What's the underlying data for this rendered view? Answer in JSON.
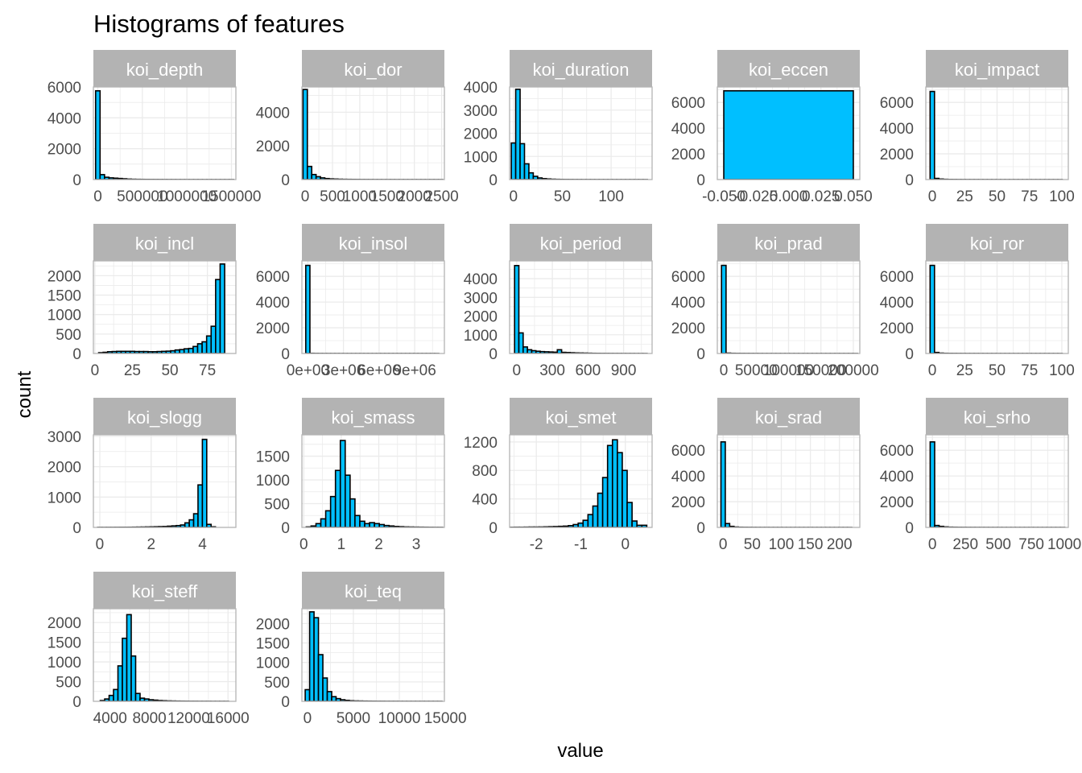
{
  "title": "Histograms of features",
  "colors": {
    "fill": "#00bfff",
    "outline": "#000000",
    "strip": "#b3b3b3",
    "grid": "#ebebeb",
    "panel_border": "#b3b3b3",
    "strip_text": "#ffffff"
  },
  "chart_data": {
    "type": "bar",
    "title": "Histograms of features",
    "xlabel": "value",
    "ylabel": "count",
    "facet_layout": {
      "ncol": 5,
      "nrow": 4,
      "scales": "free"
    },
    "grid": true,
    "panels": [
      {
        "name": "koi_depth",
        "xlim": [
          -50000,
          1550000
        ],
        "ylim": [
          0,
          6000
        ],
        "xticks": [
          0,
          500000,
          1000000,
          1500000
        ],
        "xtick_labels": [
          "0",
          "500000",
          "1000000",
          "1500000"
        ],
        "yticks": [
          0,
          2000,
          4000,
          6000
        ],
        "ytick_labels": [
          "0",
          "2000",
          "4000",
          "6000"
        ],
        "bins": {
          "start": -25000,
          "width": 50000,
          "counts": [
            5750,
            320,
            150,
            110,
            90,
            70,
            50,
            30,
            20,
            15,
            12,
            10,
            8,
            7,
            6,
            5,
            4,
            4,
            3,
            3,
            2,
            2,
            2,
            2,
            1,
            1,
            1,
            1,
            1,
            1,
            1
          ]
        }
      },
      {
        "name": "koi_dor",
        "xlim": [
          -60,
          2550
        ],
        "ylim": [
          0,
          5500
        ],
        "xticks": [
          0,
          500,
          1000,
          1500,
          2000,
          2500
        ],
        "xtick_labels": [
          "0",
          "500",
          "1000",
          "1500",
          "2000",
          "2500"
        ],
        "yticks": [
          0,
          2000,
          4000
        ],
        "ytick_labels": [
          "0",
          "2000",
          "4000"
        ],
        "bins": {
          "start": -40,
          "width": 80,
          "counts": [
            5350,
            780,
            300,
            170,
            100,
            60,
            40,
            30,
            20,
            15,
            12,
            10,
            8,
            6,
            5,
            4,
            3,
            3,
            2,
            2,
            2,
            1,
            1,
            1,
            1,
            1,
            1,
            1,
            1,
            1,
            1,
            1
          ]
        }
      },
      {
        "name": "koi_duration",
        "xlim": [
          -4,
          142
        ],
        "ylim": [
          0,
          4000
        ],
        "xticks": [
          0,
          50,
          100
        ],
        "xtick_labels": [
          "0",
          "50",
          "100"
        ],
        "yticks": [
          0,
          1000,
          2000,
          3000,
          4000
        ],
        "ytick_labels": [
          "0",
          "1000",
          "2000",
          "3000",
          "4000"
        ],
        "bins": {
          "start": -2.25,
          "width": 4.5,
          "counts": [
            1580,
            3900,
            1550,
            680,
            290,
            140,
            70,
            40,
            25,
            15,
            10,
            7,
            5,
            4,
            3,
            3,
            2,
            2,
            2,
            1,
            1,
            1,
            1,
            1,
            1,
            1,
            1,
            1,
            1,
            1,
            1
          ]
        }
      },
      {
        "name": "koi_eccen",
        "xlim": [
          -0.055,
          0.055
        ],
        "ylim": [
          0,
          7200
        ],
        "xticks": [
          -0.05,
          -0.025,
          0,
          0.025,
          0.05
        ],
        "xtick_labels": [
          "-0.050",
          "-0.025",
          "0.000",
          "0.025",
          "0.050"
        ],
        "yticks": [
          0,
          2000,
          4000,
          6000
        ],
        "ytick_labels": [
          "0",
          "2000",
          "4000",
          "6000"
        ],
        "bins": {
          "start": -0.05,
          "width": 0.1,
          "counts": [
            6900
          ]
        }
      },
      {
        "name": "koi_impact",
        "xlim": [
          -5,
          105
        ],
        "ylim": [
          0,
          7200
        ],
        "xticks": [
          0,
          25,
          50,
          75,
          100
        ],
        "xtick_labels": [
          "0",
          "25",
          "50",
          "75",
          "100"
        ],
        "yticks": [
          0,
          2000,
          4000,
          6000
        ],
        "ytick_labels": [
          "0",
          "2000",
          "4000",
          "6000"
        ],
        "bins": {
          "start": -1.7,
          "width": 3.4,
          "counts": [
            6850,
            90,
            40,
            20,
            10,
            8,
            6,
            5,
            4,
            3,
            3,
            2,
            2,
            2,
            2,
            1,
            1,
            1,
            1,
            1,
            1,
            1,
            1,
            1,
            1,
            1,
            1,
            1,
            1,
            1
          ]
        }
      },
      {
        "name": "koi_incl",
        "xlim": [
          -1,
          94
        ],
        "ylim": [
          0,
          2380
        ],
        "xticks": [
          0,
          25,
          50,
          75
        ],
        "xtick_labels": [
          "0",
          "25",
          "50",
          "75"
        ],
        "yticks": [
          0,
          500,
          1000,
          1500,
          2000
        ],
        "ytick_labels": [
          "0",
          "500",
          "1000",
          "1500",
          "2000"
        ],
        "bins": {
          "start": 2.5,
          "width": 3,
          "counts": [
            20,
            30,
            45,
            50,
            55,
            55,
            55,
            55,
            50,
            50,
            50,
            45,
            45,
            50,
            55,
            60,
            70,
            90,
            100,
            120,
            130,
            180,
            250,
            300,
            450,
            700,
            1900,
            2300
          ]
        }
      },
      {
        "name": "koi_insol",
        "xlim": [
          -500000,
          11500000
        ],
        "ylim": [
          0,
          7200
        ],
        "xticks": [
          0,
          3000000,
          6000000,
          9000000
        ],
        "xtick_labels": [
          "0e+00",
          "3e+06",
          "6e+06",
          "9e+06"
        ],
        "yticks": [
          0,
          2000,
          4000,
          6000
        ],
        "ytick_labels": [
          "0",
          "2000",
          "4000",
          "6000"
        ],
        "bins": {
          "start": -175000,
          "width": 350000,
          "counts": [
            6850,
            15,
            8,
            5,
            4,
            3,
            2,
            2,
            1,
            1,
            1,
            1,
            1,
            1,
            1,
            1,
            1,
            1,
            1,
            1,
            1,
            1,
            1,
            1,
            1,
            1,
            1,
            1,
            1,
            1,
            1,
            1
          ]
        }
      },
      {
        "name": "koi_period",
        "xlim": [
          -60,
          1140
        ],
        "ylim": [
          0,
          4950
        ],
        "xticks": [
          0,
          300,
          600,
          900
        ],
        "xtick_labels": [
          "0",
          "300",
          "600",
          "900"
        ],
        "yticks": [
          0,
          1000,
          2000,
          3000,
          4000
        ],
        "ytick_labels": [
          "0",
          "1000",
          "2000",
          "3000",
          "4000"
        ],
        "bins": {
          "start": -18,
          "width": 36,
          "counts": [
            4700,
            1100,
            350,
            200,
            150,
            120,
            100,
            90,
            80,
            70,
            200,
            60,
            50,
            40,
            30,
            25,
            20,
            15,
            10,
            8,
            6,
            5,
            4,
            3,
            3,
            2,
            2,
            2,
            1,
            1,
            1
          ]
        }
      },
      {
        "name": "koi_prad",
        "xlim": [
          -10000,
          210000
        ],
        "ylim": [
          0,
          7200
        ],
        "xticks": [
          0,
          50000,
          100000,
          150000,
          200000
        ],
        "xtick_labels": [
          "0",
          "50000",
          "100000",
          "150000",
          "200000"
        ],
        "yticks": [
          0,
          2000,
          4000,
          6000
        ],
        "ytick_labels": [
          "0",
          "2000",
          "4000",
          "6000"
        ],
        "bins": {
          "start": -3500,
          "width": 7000,
          "counts": [
            6850,
            30,
            15,
            10,
            8,
            6,
            5,
            4,
            3,
            2,
            2,
            2,
            2,
            1,
            1,
            1,
            1,
            1,
            1,
            1,
            1,
            1,
            1,
            1,
            1,
            1,
            1,
            1,
            1,
            1
          ]
        }
      },
      {
        "name": "koi_ror",
        "xlim": [
          -5,
          105
        ],
        "ylim": [
          0,
          7200
        ],
        "xticks": [
          0,
          25,
          50,
          75,
          100
        ],
        "xtick_labels": [
          "0",
          "25",
          "50",
          "75",
          "100"
        ],
        "yticks": [
          0,
          2000,
          4000,
          6000
        ],
        "ytick_labels": [
          "0",
          "2000",
          "4000",
          "6000"
        ],
        "bins": {
          "start": -1.7,
          "width": 3.4,
          "counts": [
            6850,
            80,
            30,
            15,
            10,
            8,
            6,
            5,
            4,
            3,
            3,
            2,
            2,
            2,
            2,
            1,
            1,
            1,
            1,
            1,
            1,
            1,
            1,
            1,
            1,
            1,
            1,
            1,
            1,
            1
          ]
        }
      },
      {
        "name": "koi_slogg",
        "xlim": [
          -0.25,
          5.3
        ],
        "ylim": [
          0,
          3050
        ],
        "xticks": [
          0,
          2,
          4
        ],
        "xtick_labels": [
          "0",
          "2",
          "4"
        ],
        "yticks": [
          0,
          1000,
          2000,
          3000
        ],
        "ytick_labels": [
          "0",
          "1000",
          "2000",
          "3000"
        ],
        "bins": {
          "start": -0.085,
          "width": 0.17,
          "counts": [
            2,
            2,
            3,
            3,
            4,
            5,
            5,
            6,
            8,
            10,
            12,
            15,
            18,
            22,
            26,
            30,
            40,
            50,
            60,
            80,
            150,
            250,
            450,
            1400,
            2900,
            100,
            20
          ]
        }
      },
      {
        "name": "koi_smass",
        "xlim": [
          -0.05,
          3.75
        ],
        "ylim": [
          0,
          1950
        ],
        "xticks": [
          0,
          1,
          2,
          3
        ],
        "xtick_labels": [
          "0",
          "1",
          "2",
          "3"
        ],
        "yticks": [
          0,
          500,
          1000,
          1500
        ],
        "ytick_labels": [
          "0",
          "500",
          "1000",
          "1500"
        ],
        "bins": {
          "start": 0.065,
          "width": 0.13,
          "counts": [
            10,
            30,
            80,
            180,
            350,
            650,
            1200,
            1830,
            1100,
            600,
            250,
            130,
            80,
            100,
            80,
            60,
            40,
            30,
            20,
            15,
            10,
            8,
            6,
            5,
            4,
            3,
            2,
            2
          ]
        }
      },
      {
        "name": "koi_smet",
        "xlim": [
          -2.6,
          0.6
        ],
        "ylim": [
          0,
          1300
        ],
        "xticks": [
          -2,
          -1,
          0
        ],
        "xtick_labels": [
          "-2",
          "-1",
          "0"
        ],
        "yticks": [
          0,
          400,
          800,
          1200
        ],
        "ytick_labels": [
          "0",
          "400",
          "800",
          "1200"
        ],
        "bins": {
          "start": -2.6,
          "width": 0.11,
          "counts": [
            2,
            3,
            3,
            4,
            5,
            5,
            6,
            8,
            10,
            12,
            15,
            18,
            25,
            40,
            60,
            100,
            180,
            300,
            480,
            700,
            1150,
            1230,
            1050,
            800,
            350,
            90,
            30,
            30
          ]
        }
      },
      {
        "name": "koi_srad",
        "xlim": [
          -10,
          235
        ],
        "ylim": [
          0,
          7200
        ],
        "xticks": [
          0,
          50,
          100,
          150,
          200
        ],
        "xtick_labels": [
          "0",
          "50",
          "100",
          "150",
          "200"
        ],
        "yticks": [
          0,
          2000,
          4000,
          6000
        ],
        "ytick_labels": [
          "0",
          "2000",
          "4000",
          "6000"
        ],
        "bins": {
          "start": -3.75,
          "width": 7.5,
          "counts": [
            6650,
            300,
            80,
            30,
            15,
            10,
            8,
            6,
            4,
            3,
            3,
            2,
            2,
            2,
            1,
            1,
            1,
            1,
            1,
            1,
            1,
            1,
            1,
            1,
            1,
            1,
            1,
            1,
            1,
            1
          ]
        }
      },
      {
        "name": "koi_srho",
        "xlim": [
          -50,
          1030
        ],
        "ylim": [
          0,
          7200
        ],
        "xticks": [
          0,
          250,
          500,
          750,
          1000
        ],
        "xtick_labels": [
          "0",
          "250",
          "500",
          "750",
          "1000"
        ],
        "yticks": [
          0,
          2000,
          4000,
          6000
        ],
        "ytick_labels": [
          "0",
          "2000",
          "4000",
          "6000"
        ],
        "bins": {
          "start": -17,
          "width": 34,
          "counts": [
            6650,
            150,
            80,
            40,
            20,
            15,
            10,
            8,
            6,
            5,
            4,
            3,
            3,
            2,
            2,
            2,
            1,
            1,
            1,
            1,
            1,
            1,
            1,
            1,
            1,
            1,
            1,
            1,
            1,
            1
          ]
        }
      },
      {
        "name": "koi_steff",
        "xlim": [
          2300,
          16800
        ],
        "ylim": [
          0,
          2350
        ],
        "xticks": [
          4000,
          8000,
          12000,
          16000
        ],
        "xtick_labels": [
          "4000",
          "8000",
          "12000",
          "16000"
        ],
        "yticks": [
          0,
          500,
          1000,
          1500,
          2000
        ],
        "ytick_labels": [
          "0",
          "500",
          "1000",
          "1500",
          "2000"
        ],
        "bins": {
          "start": 3000,
          "width": 450,
          "counts": [
            20,
            60,
            150,
            300,
            900,
            1600,
            2200,
            1150,
            200,
            80,
            60,
            40,
            30,
            20,
            15,
            10,
            8,
            6,
            5,
            4,
            3,
            3,
            2,
            2,
            2,
            1,
            1,
            1,
            1
          ]
        }
      },
      {
        "name": "koi_teq",
        "xlim": [
          -600,
          14900
        ],
        "ylim": [
          0,
          2380
        ],
        "xticks": [
          0,
          5000,
          10000,
          15000
        ],
        "xtick_labels": [
          "0",
          "5000",
          "10000",
          "15000"
        ],
        "yticks": [
          0,
          500,
          1000,
          1500,
          2000
        ],
        "ytick_labels": [
          "0",
          "500",
          "1000",
          "1500",
          "2000"
        ],
        "bins": {
          "start": -240,
          "width": 480,
          "counts": [
            300,
            2300,
            2150,
            1200,
            600,
            250,
            120,
            70,
            40,
            25,
            15,
            10,
            8,
            6,
            5,
            4,
            3,
            3,
            2,
            2,
            2,
            1,
            1,
            1,
            1,
            1,
            1,
            1,
            1,
            1,
            1
          ]
        }
      }
    ]
  }
}
